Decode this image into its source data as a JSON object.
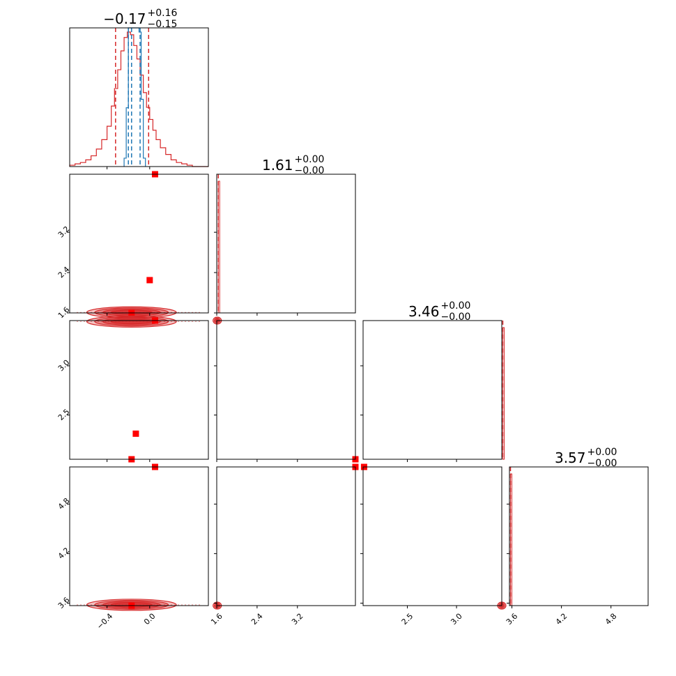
{
  "chart_data": {
    "type": "corner",
    "parameters": 4,
    "colors": {
      "posterior": "#d62728",
      "secondary": "#1f77b4",
      "marker": "#ff0000"
    },
    "axes": [
      {
        "range": [
          -0.75,
          0.55
        ],
        "ticks": [
          -0.4,
          0.0
        ],
        "tick_labels": [
          "−0.4",
          "0.0"
        ]
      },
      {
        "range": [
          1.6,
          4.35
        ],
        "ticks": [
          1.6,
          2.4,
          3.2
        ],
        "tick_labels": [
          "1.6",
          "2.4",
          "3.2"
        ]
      },
      {
        "range": [
          2.05,
          3.46
        ],
        "ticks": [
          2.5,
          3.0
        ],
        "tick_labels": [
          "2.5",
          "3.0"
        ]
      },
      {
        "range": [
          3.57,
          5.25
        ],
        "ticks": [
          3.6,
          4.2,
          4.8
        ],
        "tick_labels": [
          "3.6",
          "4.2",
          "4.8"
        ]
      }
    ],
    "titles": [
      {
        "median": "−0.17",
        "plus": "+0.16",
        "minus": "−0.15"
      },
      {
        "median": "1.61",
        "plus": "+0.00",
        "minus": "−0.00"
      },
      {
        "median": "3.46",
        "plus": "+0.00",
        "minus": "−0.00"
      },
      {
        "median": "3.57",
        "plus": "+0.00",
        "minus": "−0.00"
      }
    ],
    "histograms": [
      {
        "red_quantiles": [
          -0.32,
          -0.17,
          -0.01
        ],
        "blue_quantiles": [
          -0.2,
          -0.17,
          -0.09
        ],
        "red_bins": [
          -0.75,
          -0.7,
          -0.65,
          -0.6,
          -0.55,
          -0.5,
          -0.45,
          -0.4,
          -0.36,
          -0.33,
          -0.3,
          -0.27,
          -0.24,
          -0.21,
          -0.18,
          -0.15,
          -0.12,
          -0.09,
          -0.06,
          -0.03,
          0.0,
          0.03,
          0.06,
          0.1,
          0.15,
          0.2,
          0.25,
          0.3,
          0.35,
          0.4,
          0.45,
          0.5,
          0.55
        ],
        "red_counts": [
          0.01,
          0.02,
          0.03,
          0.05,
          0.08,
          0.13,
          0.2,
          0.3,
          0.45,
          0.58,
          0.72,
          0.86,
          0.96,
          1.0,
          0.98,
          0.9,
          0.8,
          0.68,
          0.55,
          0.44,
          0.35,
          0.27,
          0.2,
          0.14,
          0.09,
          0.05,
          0.03,
          0.02,
          0.01,
          0.0,
          0.0,
          0.0
        ],
        "blue_bins": [
          -0.24,
          -0.22,
          -0.2,
          -0.18,
          -0.16,
          -0.14,
          -0.12,
          -0.1,
          -0.08,
          -0.06,
          -0.04
        ],
        "blue_counts": [
          0.05,
          0.35,
          0.85,
          1.0,
          0.95,
          0.9,
          0.95,
          0.8,
          0.4,
          0.05
        ]
      },
      {
        "red_quantiles": [
          1.61,
          1.61,
          1.61
        ],
        "spike_at": 1.61
      },
      {
        "red_quantiles": [
          3.46,
          3.46,
          3.46
        ],
        "spike_at": 3.46
      },
      {
        "red_quantiles": [
          3.57,
          3.57,
          3.57
        ],
        "spike_at": 3.57
      }
    ],
    "scatter_panels": [
      {
        "row": 1,
        "col": 0,
        "points": [
          [
            0.05,
            4.35
          ],
          [
            0.0,
            2.25
          ],
          [
            -0.17,
            1.6
          ]
        ],
        "contour_center": [
          -0.17,
          1.61
        ],
        "contour_halfwidth": 0.42
      },
      {
        "row": 2,
        "col": 0,
        "points": [
          [
            0.05,
            3.46
          ],
          [
            -0.13,
            2.31
          ],
          [
            -0.17,
            2.05
          ]
        ],
        "contour_center": [
          -0.17,
          3.45
        ],
        "contour_halfwidth": 0.42
      },
      {
        "row": 2,
        "col": 1,
        "points": [
          [
            4.35,
            2.05
          ]
        ],
        "contour_center": [
          1.61,
          3.46
        ],
        "contour_halfwidth": 0.0
      },
      {
        "row": 3,
        "col": 0,
        "points": [
          [
            0.05,
            5.25
          ],
          [
            -0.17,
            3.57
          ]
        ],
        "contour_center": [
          -0.17,
          3.58
        ],
        "contour_halfwidth": 0.42
      },
      {
        "row": 3,
        "col": 1,
        "points": [
          [
            4.35,
            5.25
          ]
        ],
        "contour_center": [
          1.61,
          3.57
        ],
        "contour_halfwidth": 0.0
      },
      {
        "row": 3,
        "col": 2,
        "points": [
          [
            2.06,
            5.25
          ]
        ],
        "contour_center": [
          3.46,
          3.57
        ],
        "contour_halfwidth": 0.0
      }
    ]
  }
}
